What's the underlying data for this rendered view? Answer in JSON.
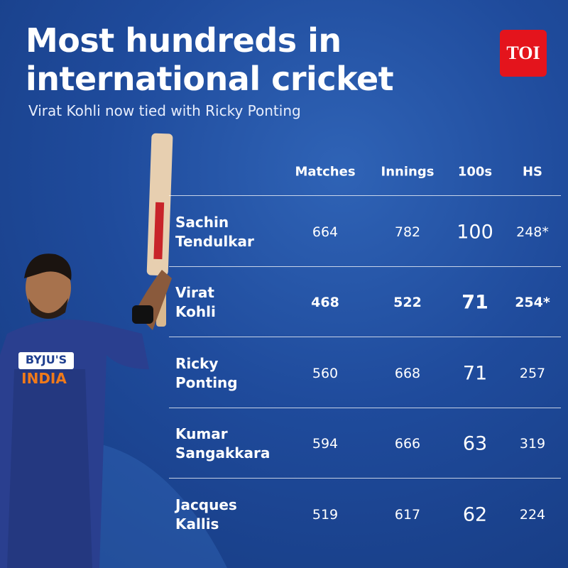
{
  "header": {
    "title": "Most hundreds in international cricket",
    "subtitle": "Virat Kohli now tied with Ricky Ponting",
    "logo": "TOI"
  },
  "table": {
    "columns": [
      "Matches",
      "Innings",
      "100s",
      "HS"
    ],
    "rows": [
      [
        "Sachin Tendulkar",
        664,
        782,
        100,
        "248*"
      ],
      [
        "Virat Kohli",
        468,
        522,
        71,
        "254*"
      ],
      [
        "Ricky Ponting",
        560,
        668,
        71,
        257
      ],
      [
        "Kumar Sangakkara",
        594,
        666,
        63,
        319
      ],
      [
        "Jacques Kallis",
        519,
        617,
        62,
        224
      ]
    ]
  }
}
